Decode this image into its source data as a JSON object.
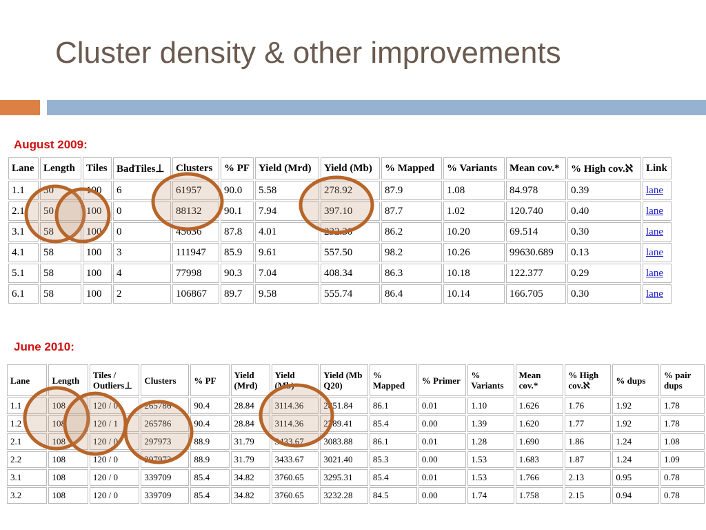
{
  "title": "Cluster density & other improvements",
  "sections": [
    {
      "label": "August 2009:",
      "headers": [
        "Lane",
        "Length",
        "Tiles",
        "BadTiles⊥",
        "Clusters",
        "% PF",
        "Yield (Mrd)",
        "Yield (Mb)",
        "% Mapped",
        "% Variants",
        "Mean cov.*",
        "% High cov.ℵ",
        "Link"
      ],
      "rows": [
        [
          "1.1",
          "50",
          "100",
          "6",
          "61957",
          "90.0",
          "5.58",
          "278.92",
          "87.9",
          "1.08",
          "84.978",
          "0.39",
          "lane"
        ],
        [
          "2.1",
          "50",
          "100",
          "0",
          "88132",
          "90.1",
          "7.94",
          "397.10",
          "87.7",
          "1.02",
          "120.740",
          "0.40",
          "lane"
        ],
        [
          "3.1",
          "58",
          "100",
          "0",
          "45636",
          "87.8",
          "4.01",
          "232.30",
          "86.2",
          "10.20",
          "69.514",
          "0.30",
          "lane"
        ],
        [
          "4.1",
          "58",
          "100",
          "3",
          "111947",
          "85.9",
          "9.61",
          "557.50",
          "98.2",
          "10.26",
          "99630.689",
          "0.13",
          "lane"
        ],
        [
          "5.1",
          "58",
          "100",
          "4",
          "77998",
          "90.3",
          "7.04",
          "408.34",
          "86.3",
          "10.18",
          "122.377",
          "0.29",
          "lane"
        ],
        [
          "6.1",
          "58",
          "100",
          "2",
          "106867",
          "89.7",
          "9.58",
          "555.74",
          "86.4",
          "10.14",
          "166.705",
          "0.30",
          "lane"
        ]
      ]
    },
    {
      "label": "June 2010:",
      "headers": [
        "Lane",
        "Length",
        "Tiles / Outliers⊥",
        "Clusters",
        "% PF",
        "Yield (Mrd)",
        "Yield (Mb)",
        "Yield (Mb Q20)",
        "% Mapped",
        "% Primer",
        "% Variants",
        "Mean cov.*",
        "% High cov.ℵ",
        "% dups",
        "% pair dups"
      ],
      "rows": [
        [
          "1.1",
          "108",
          "120 / 0",
          "265786",
          "90.4",
          "28.84",
          "3114.36",
          "2851.84",
          "86.1",
          "0.01",
          "1.10",
          "1.626",
          "1.76",
          "1.92",
          "1.78"
        ],
        [
          "1.2",
          "108",
          "120 / 1",
          "265786",
          "90.4",
          "28.84",
          "3114.36",
          "2789.41",
          "85.4",
          "0.00",
          "1.39",
          "1.620",
          "1.77",
          "1.92",
          "1.78"
        ],
        [
          "2.1",
          "108",
          "120 / 0",
          "297973",
          "88.9",
          "31.79",
          "3433.67",
          "3083.88",
          "86.1",
          "0.01",
          "1.28",
          "1.690",
          "1.86",
          "1.24",
          "1.08"
        ],
        [
          "2.2",
          "108",
          "120 / 0",
          "297973",
          "88.9",
          "31.79",
          "3433.67",
          "3021.40",
          "85.3",
          "0.00",
          "1.53",
          "1.683",
          "1.87",
          "1.24",
          "1.09"
        ],
        [
          "3.1",
          "108",
          "120 / 0",
          "339709",
          "85.4",
          "34.82",
          "3760.65",
          "3295.31",
          "85.4",
          "0.01",
          "1.53",
          "1.766",
          "2.13",
          "0.95",
          "0.78"
        ],
        [
          "3.2",
          "108",
          "120 / 0",
          "339709",
          "85.4",
          "34.82",
          "3760.65",
          "3232.28",
          "84.5",
          "0.00",
          "1.74",
          "1.758",
          "2.15",
          "0.94",
          "0.78"
        ]
      ]
    }
  ]
}
